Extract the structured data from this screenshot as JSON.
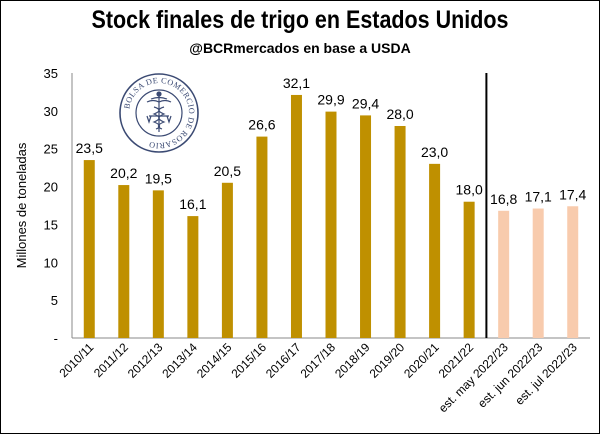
{
  "chart_data": {
    "type": "bar",
    "title": "Stock finales de trigo en Estados Unidos",
    "subtitle": "@BCRmercados en base a USDA",
    "ylabel": "Millones de toneladas",
    "xlabel": "",
    "ylim": [
      0,
      35
    ],
    "ytick_labels": [
      "-",
      "5",
      "10",
      "15",
      "20",
      "25",
      "30",
      "35"
    ],
    "ytick_values": [
      0,
      5,
      10,
      15,
      20,
      25,
      30,
      35
    ],
    "grid": false,
    "categories": [
      "2010/11",
      "2011/12",
      "2012/13",
      "2013/14",
      "2014/15",
      "2015/16",
      "2016/17",
      "2017/18",
      "2018/19",
      "2019/20",
      "2020/21",
      "2021/22",
      "est. may 2022/23",
      "est. jun 2022/23",
      "est. jul 2022/23"
    ],
    "values": [
      23.5,
      20.2,
      19.5,
      16.1,
      20.5,
      26.6,
      32.1,
      29.9,
      29.4,
      28.0,
      23.0,
      18.0,
      16.8,
      17.1,
      17.4
    ],
    "data_labels": [
      "23,5",
      "20,2",
      "19,5",
      "16,1",
      "20,5",
      "26,6",
      "32,1",
      "29,9",
      "29,4",
      "28,0",
      "23,0",
      "18,0",
      "16,8",
      "17,1",
      "17,4"
    ],
    "bar_colors": [
      "#bf9000",
      "#bf9000",
      "#bf9000",
      "#bf9000",
      "#bf9000",
      "#bf9000",
      "#bf9000",
      "#bf9000",
      "#bf9000",
      "#bf9000",
      "#bf9000",
      "#bf9000",
      "#f8cbad",
      "#f8cbad",
      "#f8cbad"
    ],
    "separator_after_index": 11
  },
  "watermark": {
    "text": "BOLSA DE COMERCIO DE ROSARIO",
    "icon": "caduceus-icon"
  },
  "colors": {
    "historic": "#bf9000",
    "estimate": "#f8cbad",
    "axis": "#888888",
    "separator": "#000000"
  }
}
